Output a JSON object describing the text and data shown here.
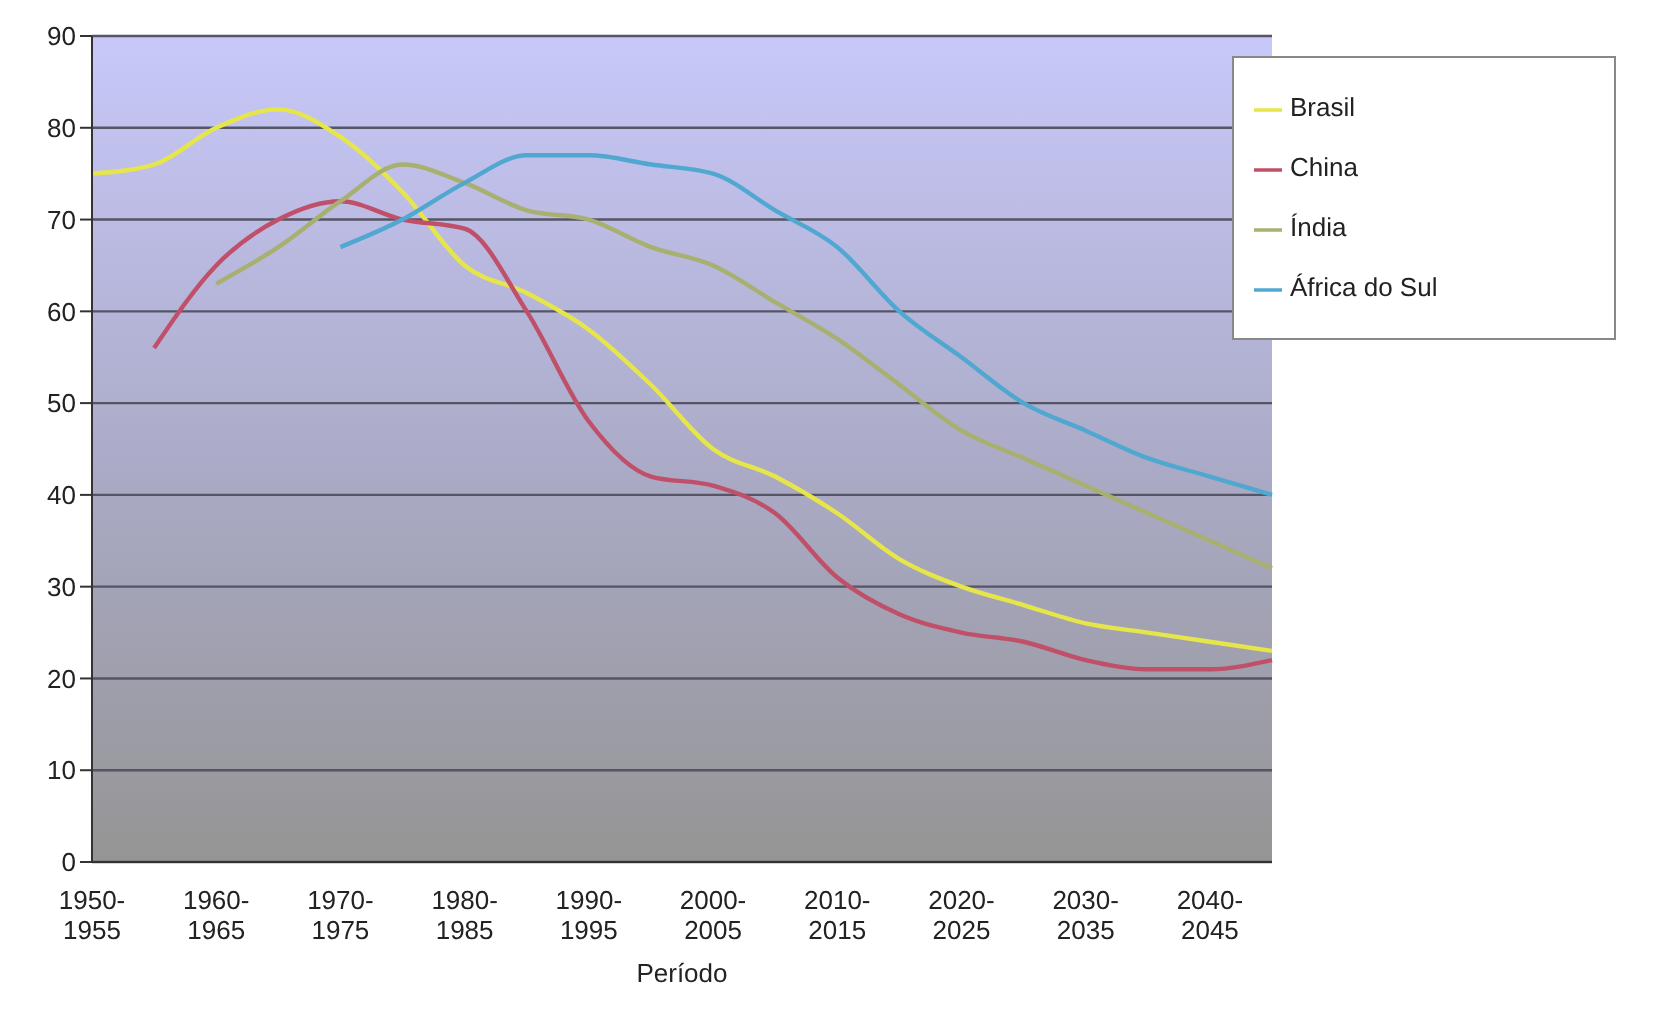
{
  "chart_data": {
    "type": "line",
    "xlabel": "Período",
    "categories": [
      "1950-1955",
      null,
      "1960-1965",
      null,
      "1970-1975",
      null,
      "1980-1985",
      null,
      "1990-1995",
      null,
      "2000-2005",
      null,
      "2010-2015",
      null,
      "2020-2025",
      null,
      "2030-2035",
      null,
      "2040-2045",
      null
    ],
    "series": [
      {
        "name": "Brasil",
        "color": "#e6e64a",
        "values": [
          75,
          76,
          80,
          82,
          79,
          73,
          65,
          62,
          58,
          52,
          45,
          42,
          38,
          33,
          30,
          28,
          26,
          25,
          24,
          23
        ]
      },
      {
        "name": "China",
        "color": "#c0506a",
        "values": [
          null,
          56,
          65,
          70,
          72,
          70,
          69,
          60,
          48,
          42,
          41,
          38,
          31,
          27,
          25,
          24,
          22,
          21,
          21,
          22
        ]
      },
      {
        "name": "Índia",
        "color": "#a8b070",
        "values": [
          null,
          null,
          63,
          67,
          72,
          76,
          74,
          71,
          70,
          67,
          65,
          61,
          57,
          52,
          47,
          44,
          41,
          38,
          35,
          32
        ]
      },
      {
        "name": "África do Sul",
        "color": "#50a8d0",
        "values": [
          null,
          null,
          null,
          null,
          67,
          70,
          74,
          77,
          77,
          76,
          75,
          71,
          67,
          60,
          55,
          50,
          47,
          44,
          42,
          40
        ]
      }
    ],
    "ylim": [
      0,
      90
    ],
    "yticks": [
      0,
      10,
      20,
      30,
      40,
      50,
      60,
      70,
      80,
      90
    ],
    "grid": "y",
    "legend": "top right",
    "marker": "none",
    "line_style": "solid"
  }
}
